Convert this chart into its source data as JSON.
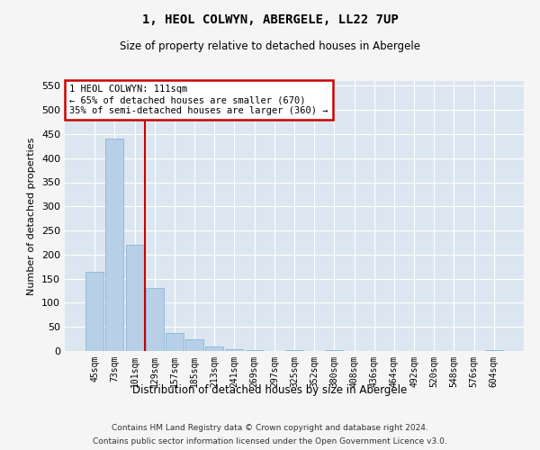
{
  "title": "1, HEOL COLWYN, ABERGELE, LL22 7UP",
  "subtitle": "Size of property relative to detached houses in Abergele",
  "xlabel": "Distribution of detached houses by size in Abergele",
  "ylabel": "Number of detached properties",
  "categories": [
    "45sqm",
    "73sqm",
    "101sqm",
    "129sqm",
    "157sqm",
    "185sqm",
    "213sqm",
    "241sqm",
    "269sqm",
    "297sqm",
    "325sqm",
    "352sqm",
    "380sqm",
    "408sqm",
    "436sqm",
    "464sqm",
    "492sqm",
    "520sqm",
    "548sqm",
    "576sqm",
    "604sqm"
  ],
  "values": [
    165,
    440,
    220,
    130,
    37,
    25,
    9,
    4,
    1,
    0,
    2,
    0,
    1,
    0,
    0,
    0,
    0,
    0,
    0,
    0,
    2
  ],
  "bar_color": "#b8cfe8",
  "bar_edge_color": "#7aafd4",
  "vline_x_idx": 2.5,
  "vline_color": "#cc0000",
  "annotation_lines": [
    "1 HEOL COLWYN: 111sqm",
    "← 65% of detached houses are smaller (670)",
    "35% of semi-detached houses are larger (360) →"
  ],
  "annotation_box_color": "#cc0000",
  "ylim": [
    0,
    560
  ],
  "yticks": [
    0,
    50,
    100,
    150,
    200,
    250,
    300,
    350,
    400,
    450,
    500,
    550
  ],
  "background_color": "#dce6f0",
  "grid_color": "#ffffff",
  "footer_line1": "Contains HM Land Registry data © Crown copyright and database right 2024.",
  "footer_line2": "Contains public sector information licensed under the Open Government Licence v3.0."
}
